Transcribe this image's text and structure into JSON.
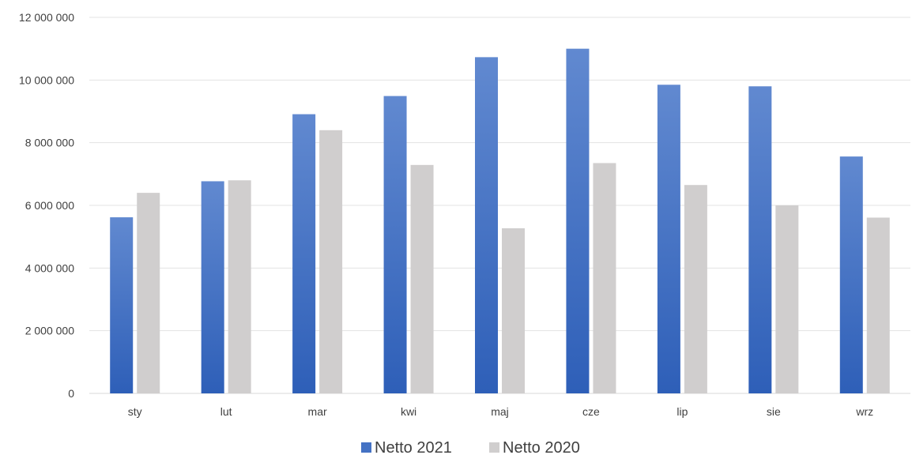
{
  "chart_data": {
    "type": "bar",
    "categories": [
      "sty",
      "lut",
      "mar",
      "kwi",
      "maj",
      "cze",
      "lip",
      "sie",
      "wrz"
    ],
    "series": [
      {
        "name": "Netto 2021",
        "values": [
          5620000,
          6770000,
          8910000,
          9490000,
          10730000,
          11000000,
          9850000,
          9800000,
          7560000
        ],
        "color": "#4472C4"
      },
      {
        "name": "Netto 2020",
        "values": [
          6400000,
          6800000,
          8400000,
          7290000,
          5270000,
          7350000,
          6650000,
          6000000,
          5610000
        ],
        "color": "#D0CECE"
      }
    ],
    "y_ticks": [
      0,
      2000000,
      4000000,
      6000000,
      8000000,
      10000000,
      12000000
    ],
    "y_tick_labels": [
      "0",
      "2 000 000",
      "4 000 000",
      "6 000 000",
      "8 000 000",
      "10 000 000",
      "12 000 000"
    ],
    "ylim": [
      0,
      12000000
    ],
    "grid": true,
    "legend_position": "bottom",
    "title": "",
    "xlabel": "",
    "ylabel": ""
  }
}
